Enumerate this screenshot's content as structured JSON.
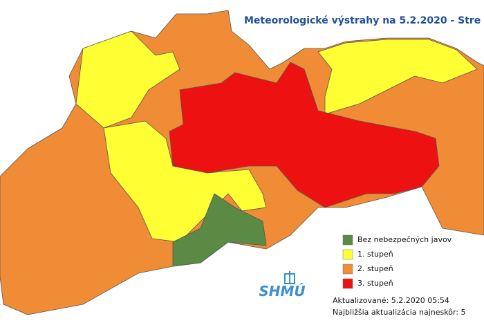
{
  "title": "Meteorologické výstrahy na 5.2.2020 - Stre",
  "legend": [
    {
      "label": "Bez nebezpečných javov",
      "color": "#5a8a44"
    },
    {
      "label": "1. stupeň",
      "color": "#ffff33"
    },
    {
      "label": "2. stupeň",
      "color": "#ef8c35"
    },
    {
      "label": "3. stupeň",
      "color": "#ee1111"
    }
  ],
  "logo": "SHMÚ",
  "updated": "Aktualizované: 5.2.2020 05:54",
  "next_update": "Najbližšia aktualizácia najneskôr: 5"
}
